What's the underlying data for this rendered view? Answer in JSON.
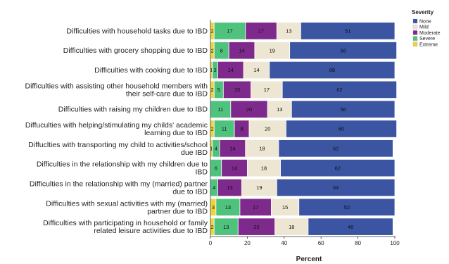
{
  "chart_data": {
    "type": "bar",
    "orientation": "horizontal",
    "stacked": true,
    "xlabel": "Percent",
    "xlim": [
      0,
      100
    ],
    "xticks": [
      0,
      20,
      40,
      60,
      80,
      100
    ],
    "legend": {
      "title": "Severity",
      "placement": "right"
    },
    "categories": [
      [
        "Difficulties with household tasks due to IBD"
      ],
      [
        "Difficulties with grocery shopping due to IBD"
      ],
      [
        "Difficulties with cooking due to IBD"
      ],
      [
        "Difficulties with assisting other household members with",
        "their self-care due to IBD"
      ],
      [
        "Difficulties with raising my children due to IBD"
      ],
      [
        "Diffuculties with helping/stimulating my childs' academic",
        "learning due to IBD"
      ],
      [
        "Diffuclties with transporting my child to activities/school",
        "due IBD"
      ],
      [
        "Difficulties in the relationship with my children due to",
        "IBD"
      ],
      [
        "Difficulties in the relationship with my (married) partner",
        "due to IBD"
      ],
      [
        "Difficulties with sexual activities with my (married)",
        "partner due to IBD"
      ],
      [
        "Difficulties with participating in household or family",
        "related leisure activities due to IBD"
      ]
    ],
    "stack_order": [
      "Extreme",
      "Severe",
      "Moderate",
      "Mild",
      "None"
    ],
    "series": [
      {
        "name": "None",
        "color": "#3b55a3",
        "values": [
          51,
          58,
          68,
          62,
          56,
          60,
          62,
          62,
          64,
          52,
          46
        ]
      },
      {
        "name": "Mild",
        "color": "#ede6d2",
        "values": [
          13,
          19,
          14,
          17,
          13,
          20,
          18,
          18,
          19,
          15,
          18
        ]
      },
      {
        "name": "Moderate",
        "color": "#7e2a8c",
        "values": [
          17,
          14,
          14,
          15,
          20,
          8,
          14,
          14,
          13,
          17,
          20
        ]
      },
      {
        "name": "Severe",
        "color": "#4fc37e",
        "values": [
          17,
          8,
          3,
          5,
          11,
          11,
          4,
          6,
          4,
          13,
          13
        ]
      },
      {
        "name": "Extreme",
        "color": "#ecd43a",
        "values": [
          2,
          2,
          1,
          2,
          0,
          2,
          1,
          0,
          0,
          3,
          2
        ]
      }
    ],
    "value_labels": [
      [
        "2",
        "17",
        "17",
        "13",
        "51"
      ],
      [
        "2",
        "8",
        "14",
        "19",
        "58"
      ],
      [
        "1",
        "3",
        "14",
        "14",
        "68"
      ],
      [
        "2",
        "5",
        "15",
        "17",
        "62"
      ],
      [
        "",
        "11",
        "20",
        "13",
        "56"
      ],
      [
        "2",
        "11",
        "8",
        "20",
        "60"
      ],
      [
        "1",
        "4",
        "14",
        "18",
        "62"
      ],
      [
        "",
        "6",
        "14",
        "18",
        "62"
      ],
      [
        "",
        "4",
        "13",
        "19",
        "64"
      ],
      [
        "3",
        "13",
        "17",
        "15",
        "52"
      ],
      [
        "2",
        "13",
        "20",
        "18",
        "46"
      ]
    ]
  }
}
